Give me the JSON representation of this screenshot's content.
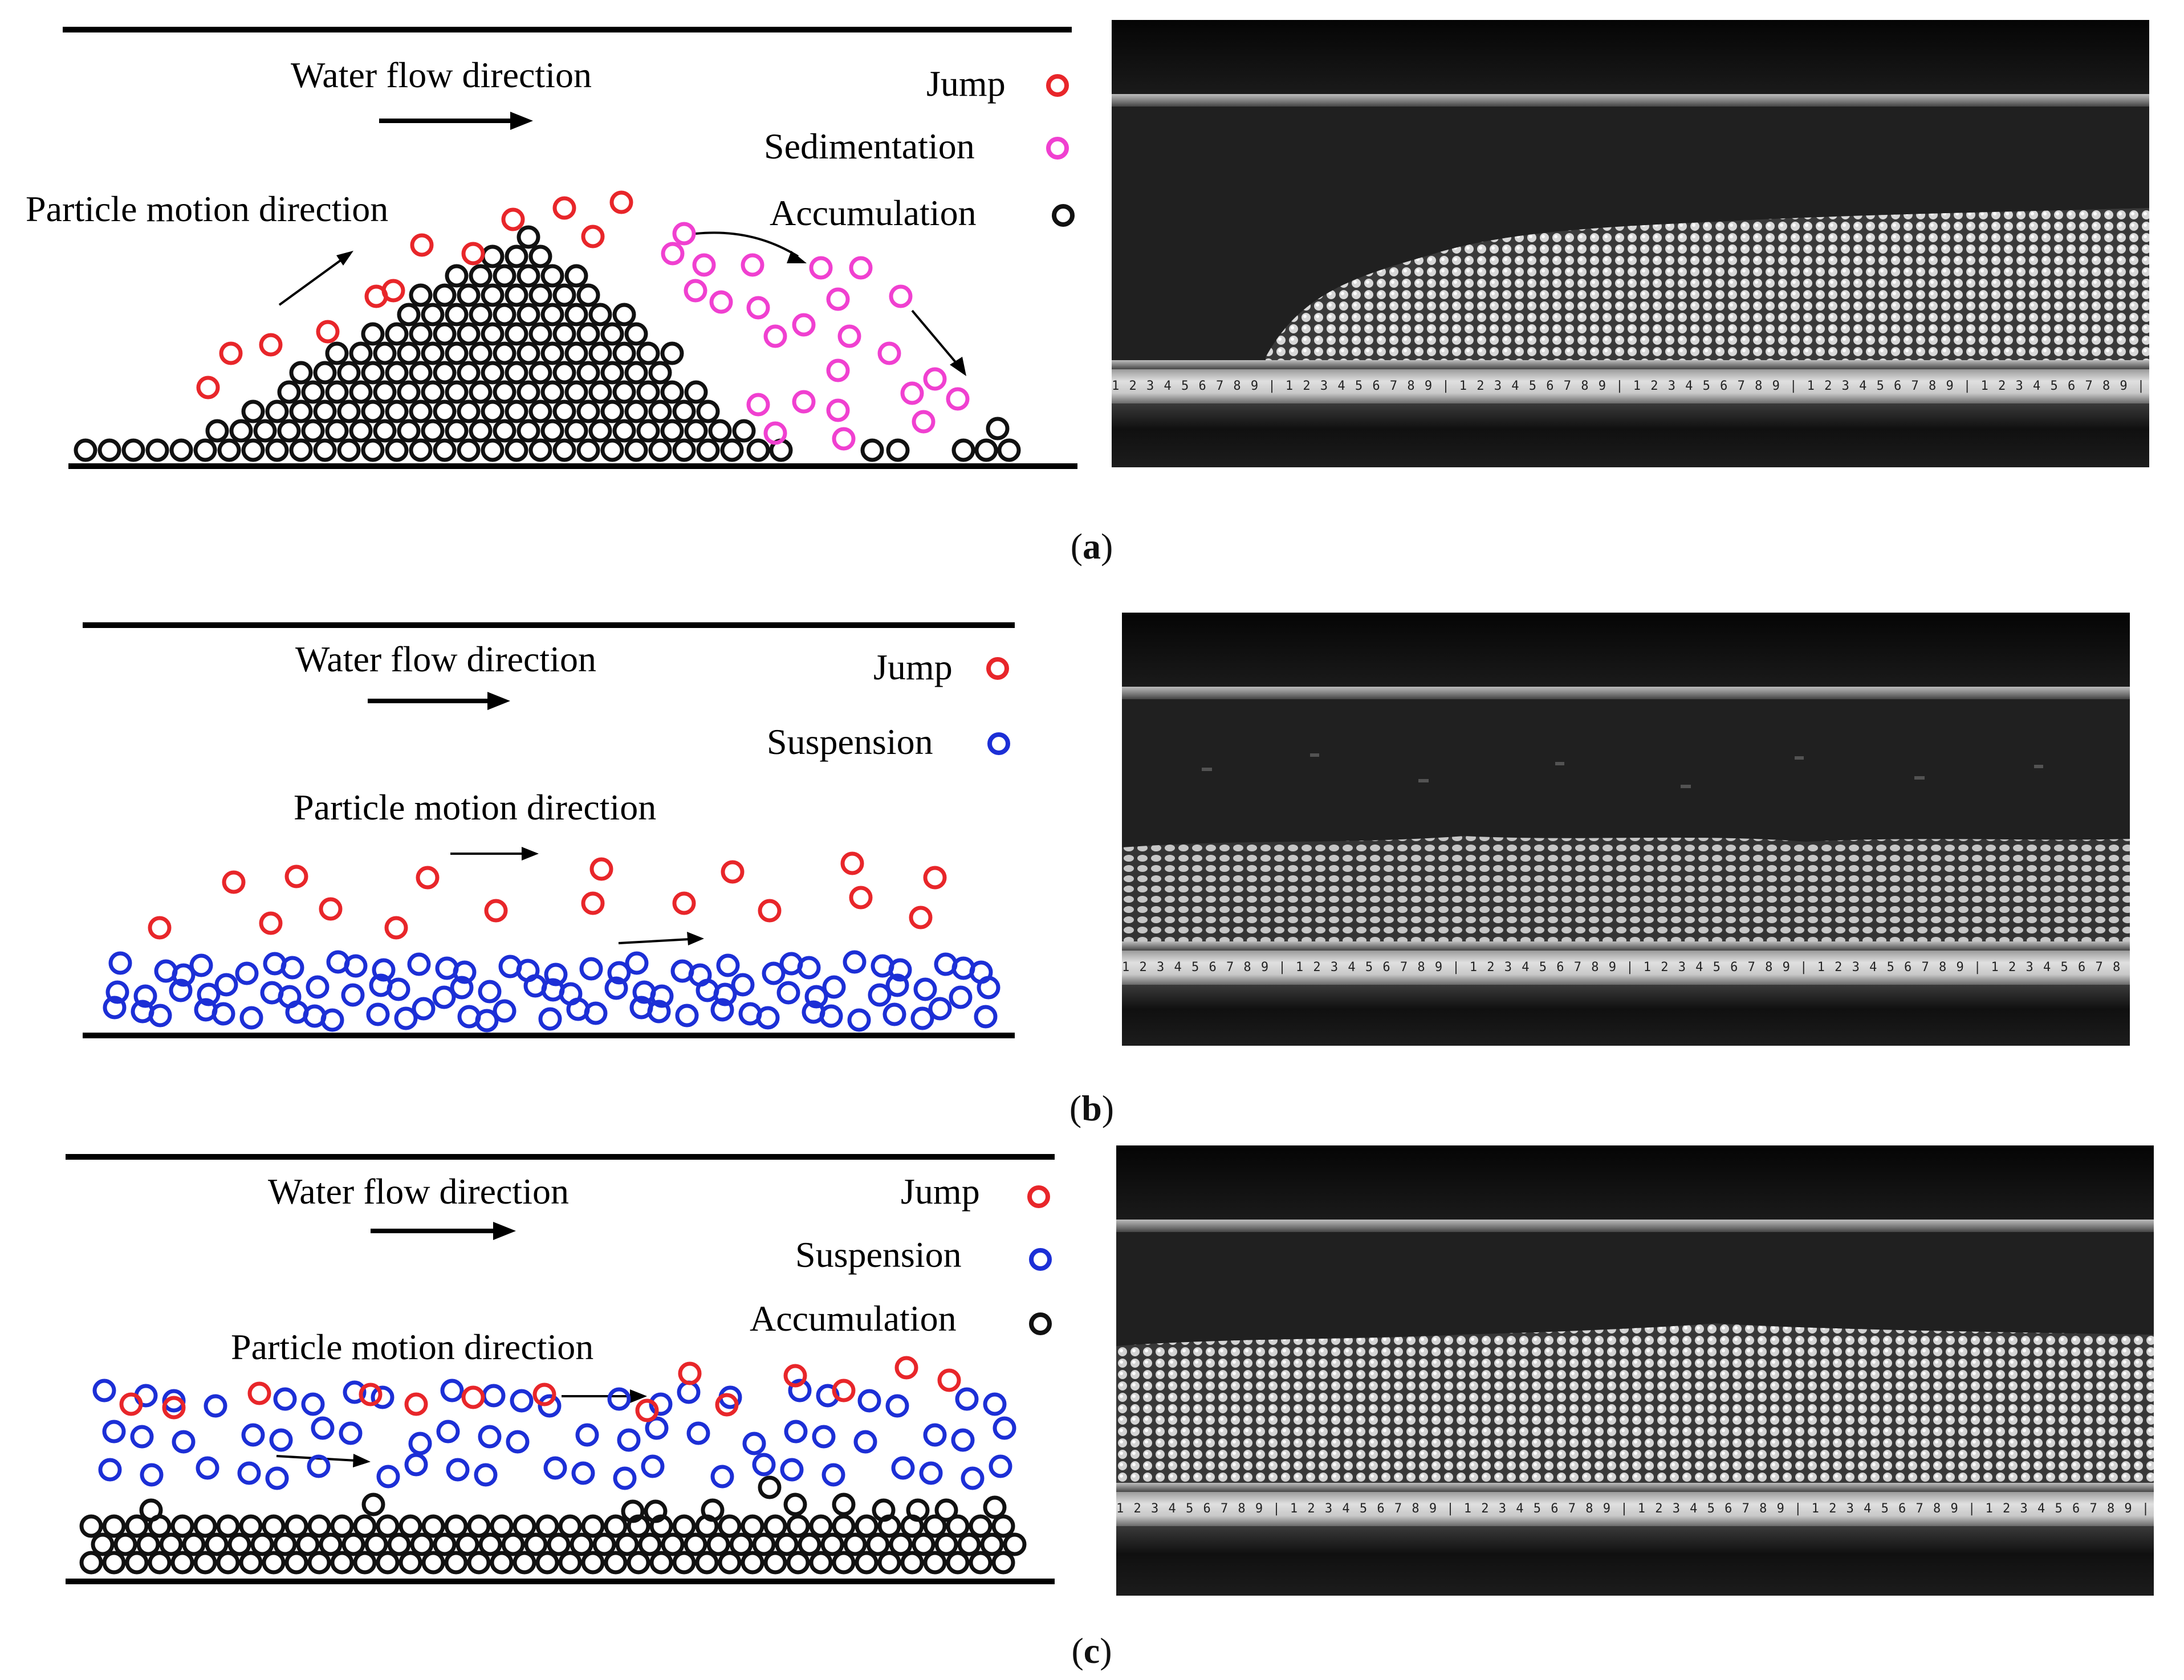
{
  "panels": [
    {
      "id": "a",
      "caption_letter": "a",
      "labels": {
        "water_flow": "Water flow direction",
        "particle_motion": "Particle motion direction"
      },
      "legend": [
        {
          "label": "Jump",
          "color": "#e8262a"
        },
        {
          "label": "Sedimentation",
          "color": "#f040d0"
        },
        {
          "label": "Accumulation",
          "color": "#111111"
        }
      ],
      "ruler_text": "1 2 3 4 5 6 7 8 9 | 1 2 3 4 5 6 7 8 9 | 1 2 3 4 5 6 7 8 9 | 1 2 3 4 5 6 7 8 9 | 1 2 3 4 5 6 7 8 9 | 1 2 3 4 5 6 7 8 9 | 1 2 3"
    },
    {
      "id": "b",
      "caption_letter": "b",
      "labels": {
        "water_flow": "Water flow direction",
        "particle_motion": "Particle motion direction"
      },
      "legend": [
        {
          "label": "Jump",
          "color": "#e8262a"
        },
        {
          "label": "Suspension",
          "color": "#1c2fd6"
        }
      ],
      "ruler_text": "1 2 3 4 5 6 7 8 9 | 1 2 3 4 5 6 7 8 9 | 1 2 3 4 5 6 7 8 9 | 1 2 3 4 5 6 7 8 9 | 1 2 3 4 5 6 7 8 9 | 1 2 3 4 5 6 7 8 9 | 1 2 3"
    },
    {
      "id": "c",
      "caption_letter": "c",
      "labels": {
        "water_flow": "Water flow direction",
        "particle_motion": "Particle motion direction"
      },
      "legend": [
        {
          "label": "Jump",
          "color": "#e8262a"
        },
        {
          "label": "Suspension",
          "color": "#1c2fd6"
        },
        {
          "label": "Accumulation",
          "color": "#111111"
        }
      ],
      "ruler_text": "1 2 3 4 5 6 7 8 9 | 1 2 3 4 5 6 7 8 9 | 1 2 3 4 5 6 7 8 9 | 1 2 3 4 5 6 7 8 9 | 1 2 3 4 5 6 7 8 9 | 1 2 3 4 5 6 7 8 9 | 1 2 3"
    }
  ]
}
